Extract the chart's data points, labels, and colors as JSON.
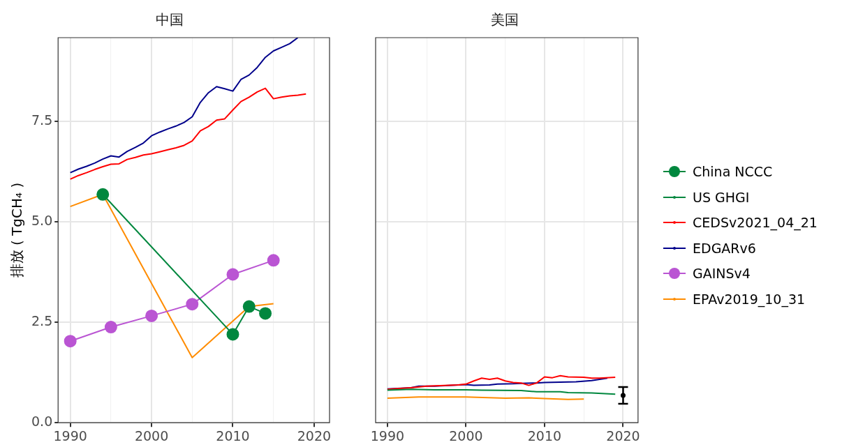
{
  "chart_data": [
    {
      "type": "line",
      "title": "中国",
      "ylabel": "排放 ( TgCH₄ )",
      "xlim": [
        1988.5,
        2021.9
      ],
      "ylim": [
        0,
        9.58
      ],
      "xticks": [
        1990,
        {
          "value": 1995,
          "label": null
        },
        2000,
        {
          "value": 2005,
          "label": null
        },
        2010,
        {
          "value": 2015,
          "label": null
        },
        2020
      ],
      "yticks": [
        {
          "value": 0,
          "label": "0.0"
        },
        {
          "value": 2.5,
          "label": "2.5"
        },
        {
          "value": 5,
          "label": "5.0"
        },
        {
          "value": 7.5,
          "label": "7.5"
        }
      ],
      "grid": true,
      "legend": "right",
      "marker": "none",
      "line_style": "solid",
      "series": [
        {
          "name": "China NCCC",
          "color": "#00873e",
          "marker": "circle",
          "x": [
            1994,
            2010,
            2012,
            2014
          ],
          "values": [
            5.68,
            2.2,
            2.89,
            2.72
          ]
        },
        {
          "name": "CEDSv2021_04_21",
          "color": "#ff0000",
          "x": [
            1990,
            1991,
            1992,
            1993,
            1994,
            1995,
            1996,
            1997,
            1998,
            1999,
            2000,
            2001,
            2002,
            2003,
            2004,
            2005,
            2006,
            2007,
            2008,
            2009,
            2010,
            2011,
            2012,
            2013,
            2014,
            2015,
            2016,
            2017,
            2018,
            2019
          ],
          "values": [
            6.06,
            6.15,
            6.22,
            6.3,
            6.37,
            6.43,
            6.44,
            6.55,
            6.6,
            6.66,
            6.69,
            6.74,
            6.79,
            6.84,
            6.9,
            7.01,
            7.26,
            7.37,
            7.53,
            7.56,
            7.78,
            7.99,
            8.1,
            8.23,
            8.32,
            8.06,
            8.1,
            8.13,
            8.15,
            8.18
          ]
        },
        {
          "name": "EDGARv6",
          "color": "#00008b",
          "x": [
            1990,
            1991,
            1992,
            1993,
            1994,
            1995,
            1996,
            1997,
            1998,
            1999,
            2000,
            2001,
            2002,
            2003,
            2004,
            2005,
            2006,
            2007,
            2008,
            2009,
            2010,
            2011,
            2012,
            2013,
            2014,
            2015,
            2016,
            2017,
            2018
          ],
          "values": [
            6.22,
            6.31,
            6.38,
            6.46,
            6.56,
            6.64,
            6.61,
            6.75,
            6.85,
            6.96,
            7.14,
            7.23,
            7.31,
            7.38,
            7.47,
            7.61,
            7.97,
            8.21,
            8.36,
            8.31,
            8.25,
            8.54,
            8.65,
            8.84,
            9.09,
            9.25,
            9.34,
            9.43,
            9.58
          ]
        },
        {
          "name": "GAINSv4",
          "color": "#ba55d3",
          "marker": "circle",
          "x": [
            1990,
            1995,
            2000,
            2005,
            2010,
            2015
          ],
          "values": [
            2.03,
            2.38,
            2.66,
            2.95,
            3.69,
            4.04
          ]
        },
        {
          "name": "EPAv2019_10_31",
          "color": "#ff8c00",
          "x": [
            1990,
            1994,
            2005,
            2012,
            2015
          ],
          "values": [
            5.38,
            5.68,
            1.62,
            2.89,
            2.96
          ]
        }
      ]
    },
    {
      "type": "line",
      "title": "美国",
      "xlim": [
        1988.5,
        2021.9
      ],
      "ylim": [
        0,
        9.58
      ],
      "xticks": [
        1990,
        {
          "value": 1995,
          "label": null
        },
        2000,
        {
          "value": 2005,
          "label": null
        },
        2010,
        {
          "value": 2015,
          "label": null
        },
        2020
      ],
      "yticks": [
        0,
        2.5,
        5,
        7.5
      ],
      "tick_labels": "x",
      "grid": true,
      "legend": "right",
      "marker": "none",
      "line_style": "solid",
      "series": [
        {
          "name": "US GHGI",
          "color": "#00873e",
          "x": [
            1990,
            1993,
            1996,
            2000,
            2002,
            2007,
            2009,
            2012,
            2013,
            2016,
            2019
          ],
          "values": [
            0.81,
            0.83,
            0.82,
            0.82,
            0.81,
            0.8,
            0.77,
            0.77,
            0.75,
            0.74,
            0.71
          ]
        },
        {
          "name": "CEDSv2021_04_21",
          "color": "#ff0000",
          "x": [
            1990,
            1993,
            1995,
            1999,
            2000,
            2001,
            2002,
            2003,
            2004,
            2005,
            2006,
            2007,
            2008,
            2009,
            2010,
            2011,
            2012,
            2013,
            2015,
            2016,
            2017,
            2019
          ],
          "values": [
            0.83,
            0.87,
            0.91,
            0.94,
            0.96,
            1.04,
            1.11,
            1.08,
            1.11,
            1.04,
            1.0,
            0.99,
            0.93,
            0.99,
            1.14,
            1.12,
            1.17,
            1.14,
            1.13,
            1.11,
            1.11,
            1.13
          ]
        },
        {
          "name": "EDGARv6",
          "color": "#00008b",
          "x": [
            1990,
            1993,
            1994,
            1996,
            2000,
            2001,
            2003,
            2004,
            2006,
            2007,
            2009,
            2010,
            2014,
            2016,
            2018
          ],
          "values": [
            0.84,
            0.87,
            0.91,
            0.91,
            0.95,
            0.93,
            0.94,
            0.96,
            0.97,
            0.98,
            0.99,
            1.0,
            1.02,
            1.05,
            1.11
          ]
        },
        {
          "name": "EPAv2019_10_31",
          "color": "#ff8c00",
          "x": [
            1990,
            1994,
            2000,
            2005,
            2008,
            2010,
            2013,
            2015
          ],
          "values": [
            0.61,
            0.64,
            0.64,
            0.61,
            0.62,
            0.6,
            0.58,
            0.59
          ]
        },
        {
          "color": "#000000",
          "marker": "circle",
          "x": [
            2020
          ],
          "values": [
            0.68
          ],
          "errors": [
            [
              0.47,
              0.89
            ]
          ]
        }
      ]
    }
  ]
}
